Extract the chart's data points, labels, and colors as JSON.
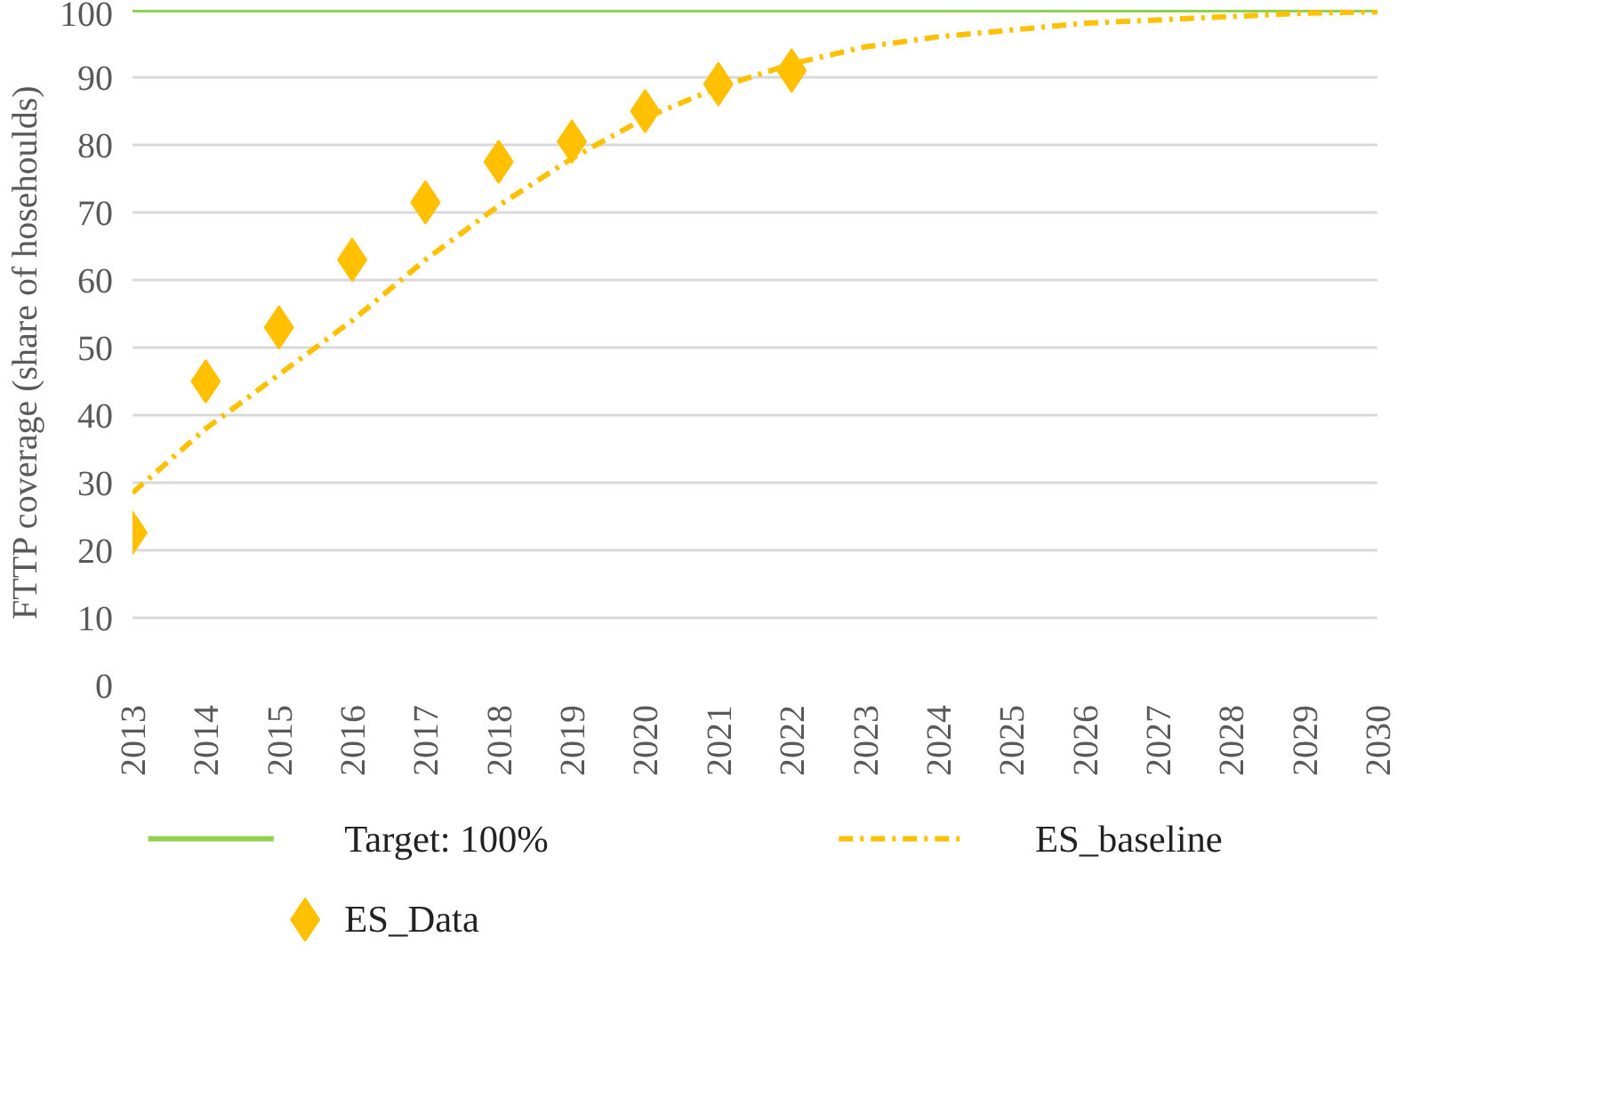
{
  "chart_data": {
    "type": "line",
    "ylabel": "FTTP coverage  (share of hosehoulds)",
    "categories": [
      "2013",
      "2014",
      "2015",
      "2016",
      "2017",
      "2018",
      "2019",
      "2020",
      "2021",
      "2022",
      "2023",
      "2024",
      "2025",
      "2026",
      "2027",
      "2028",
      "2029",
      "2030"
    ],
    "series": [
      {
        "name": "Target: 100%",
        "type": "line",
        "color": "#92d050",
        "line_style": "solid",
        "marker": "none",
        "values": [
          100,
          100,
          100,
          100,
          100,
          100,
          100,
          100,
          100,
          100,
          100,
          100,
          100,
          100,
          100,
          100,
          100,
          100
        ]
      },
      {
        "name": "ES_Data",
        "type": "scatter",
        "color": "#ffc000",
        "marker": "diamond",
        "values": [
          22.6,
          45,
          53,
          63,
          71.5,
          77.5,
          80.5,
          85,
          89,
          91,
          null,
          null,
          null,
          null,
          null,
          null,
          null,
          null
        ]
      },
      {
        "name": "ES_baseline",
        "color": "#ffc000",
        "line_style": "dashed",
        "marker": "none",
        "values": [
          28.5,
          38,
          46,
          54,
          63,
          71,
          78,
          84,
          88.5,
          92,
          94.5,
          96,
          97,
          98,
          98.5,
          99,
          99.5,
          99.7
        ]
      }
    ],
    "ylim": [
      0,
      100
    ],
    "yticks": [
      0,
      10,
      20,
      30,
      40,
      50,
      60,
      70,
      80,
      90,
      100
    ],
    "grid": "y",
    "legend": "bottom"
  }
}
